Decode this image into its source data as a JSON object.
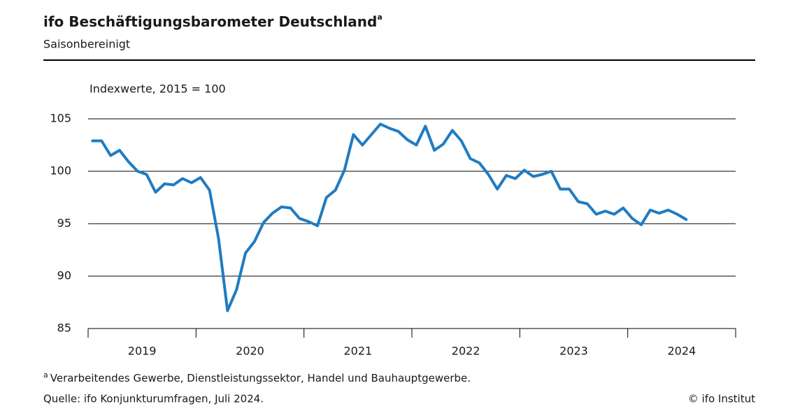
{
  "chart_data": {
    "type": "line",
    "title": "ifo Beschäftigungsbarometer Deutschland",
    "title_note_marker": "a",
    "subtitle": "Saisonbereinigt",
    "y_axis_label": "Indexwerte, 2015 = 100",
    "x_labels": [
      "2019",
      "2020",
      "2021",
      "2022",
      "2023",
      "2024"
    ],
    "series": [
      {
        "name": "ifo Beschäftigungsbarometer",
        "color": "#1f7cc2",
        "values": [
          102.9,
          102.9,
          101.5,
          102.0,
          100.9,
          100.0,
          99.7,
          98.0,
          98.8,
          98.7,
          99.3,
          98.9,
          99.4,
          98.2,
          93.6,
          86.7,
          88.7,
          92.2,
          93.3,
          95.1,
          96.0,
          96.6,
          96.5,
          95.5,
          95.2,
          94.8,
          97.5,
          98.2,
          100.1,
          103.5,
          102.5,
          103.5,
          104.5,
          104.1,
          103.8,
          103.0,
          102.5,
          104.3,
          102.0,
          102.6,
          103.9,
          102.9,
          101.2,
          100.8,
          99.7,
          98.3,
          99.6,
          99.3,
          100.1,
          99.5,
          99.7,
          100.0,
          98.3,
          98.3,
          97.1,
          96.9,
          95.9,
          96.2,
          95.9,
          96.5,
          95.5,
          94.9,
          96.3,
          96.0,
          96.3,
          95.9,
          95.4
        ]
      }
    ],
    "ylim": [
      85,
      105
    ],
    "yticks": [
      85,
      90,
      95,
      100,
      105
    ],
    "grid": true,
    "footnote_marker": "a",
    "footnote": "Verarbeitendes  Gewerbe,  Dienstleistungssektor,  Handel und Bauhauptgewerbe.",
    "source": "Quelle:  ifo Konjunkturumfragen,  Juli 2024.",
    "copyright": "© ifo Institut"
  }
}
